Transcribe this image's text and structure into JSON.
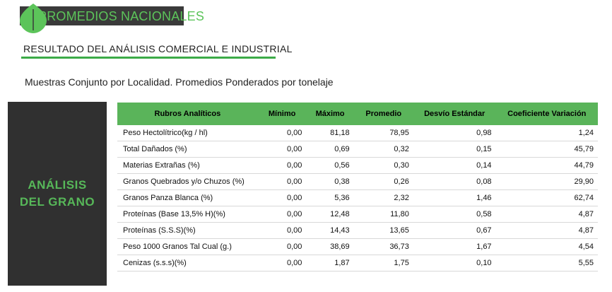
{
  "header": {
    "banner_title": "PROMEDIOS NACIONALES",
    "section_title": "RESULTADO DEL ANÁLISIS COMERCIAL E INDUSTRIAL",
    "subtitle": "Muestras Conjunto por Localidad. Promedios Ponderados por tonelaje"
  },
  "side_label": {
    "line1": "ANÁLISIS",
    "line2": "DEL GRANO"
  },
  "table": {
    "columns": [
      "Rubros Analíticos",
      "Mínimo",
      "Máximo",
      "Promedio",
      "Desvío Estándar",
      "Coeficiente Variación"
    ],
    "rows": [
      [
        "Peso Hectolítrico(kg / hl)",
        "0,00",
        "81,18",
        "78,95",
        "0,98",
        "1,24"
      ],
      [
        "Total Dañados (%)",
        "0,00",
        "0,69",
        "0,32",
        "0,15",
        "45,79"
      ],
      [
        "Materias Extrañas (%)",
        "0,00",
        "0,56",
        "0,30",
        "0,14",
        "44,79"
      ],
      [
        "Granos Quebrados y/o Chuzos (%)",
        "0,00",
        "0,38",
        "0,26",
        "0,08",
        "29,90"
      ],
      [
        "Granos Panza Blanca (%)",
        "0,00",
        "5,36",
        "2,32",
        "1,46",
        "62,74"
      ],
      [
        "Proteínas (Base 13,5% H)(%)",
        "0,00",
        "12,48",
        "11,80",
        "0,58",
        "4,87"
      ],
      [
        "Proteínas (S.S.S)(%)",
        "0,00",
        "14,43",
        "13,65",
        "0,67",
        "4,87"
      ],
      [
        "Peso 1000 Granos Tal Cual (g.)",
        "0,00",
        "38,69",
        "36,73",
        "1,67",
        "4,54"
      ],
      [
        "Cenizas (s.s.s)(%)",
        "0,00",
        "1,87",
        "1,75",
        "0,10",
        "5,55"
      ]
    ]
  },
  "colors": {
    "accent_green": "#5ab45a",
    "dark_panel": "#303030",
    "banner_bg": "#3a3a3a"
  },
  "icons": {
    "banner": "leaf-icon"
  }
}
